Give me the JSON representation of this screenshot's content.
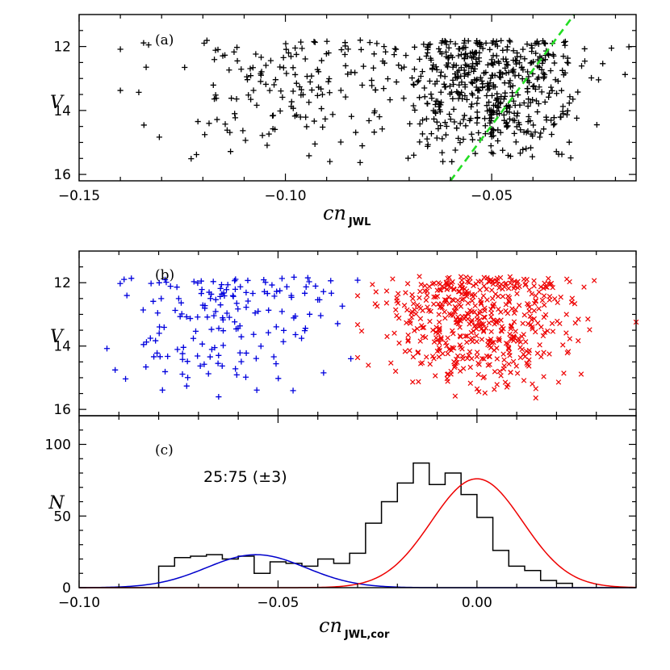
{
  "chart_data": [
    {
      "panel": "(a)",
      "type": "scatter",
      "xlabel_main": "cn",
      "xlabel_sub": "JWL",
      "ylabel": "V",
      "xlim": [
        -0.15,
        -0.015
      ],
      "ylim": [
        16.2,
        11.0
      ],
      "y_inverted": true,
      "xticks": [
        -0.15,
        -0.1,
        -0.05
      ],
      "xtick_labels": [
        "−0.15",
        "−0.10",
        "−0.05"
      ],
      "yticks": [
        12,
        14,
        16
      ],
      "ytick_labels": [
        "12",
        "14",
        "16"
      ],
      "marker": "+",
      "point_color": "#000000",
      "divider_line": {
        "style": "dashed",
        "color": "#22dd22",
        "x": [
          -0.06,
          -0.03
        ],
        "y": [
          16.2,
          11.0
        ]
      },
      "n_points": 700,
      "groups": [
        {
          "x_mean": -0.098,
          "x_sd": 0.015,
          "v_min": 11.8,
          "v_max": 15.7,
          "count": 170
        },
        {
          "x_mean": -0.05,
          "x_sd": 0.011,
          "v_min": 11.8,
          "v_max": 15.7,
          "count": 530
        }
      ]
    },
    {
      "panel": "(b)",
      "type": "scatter",
      "ylabel": "V",
      "xlim": [
        -0.1,
        0.04
      ],
      "ylim": [
        16.2,
        11.0
      ],
      "y_inverted": true,
      "yticks": [
        12,
        14,
        16
      ],
      "ytick_labels": [
        "12",
        "14",
        "16"
      ],
      "series": [
        {
          "name": "",
          "marker": "+",
          "color": "#0000dd",
          "x_range": [
            -0.093,
            -0.03
          ],
          "count": 170
        },
        {
          "name": "",
          "marker": "x",
          "color": "#ee0000",
          "x_range": [
            -0.03,
            0.04
          ],
          "count": 530
        }
      ]
    },
    {
      "panel": "(c)",
      "type": "histogram",
      "xlabel_main": "cn",
      "xlabel_sub": "JWL,cor",
      "ylabel": "N",
      "xlim": [
        -0.1,
        0.04
      ],
      "ylim": [
        0,
        120
      ],
      "xticks": [
        -0.1,
        -0.05,
        0.0
      ],
      "xtick_labels": [
        "−0.10",
        "−0.05",
        "0.00"
      ],
      "yticks": [
        0,
        50,
        100
      ],
      "ytick_labels": [
        "0",
        "50",
        "100"
      ],
      "bin_width": 0.004,
      "bin_start": -0.08,
      "counts": [
        15,
        21,
        22,
        23,
        20,
        22,
        10,
        18,
        17,
        15,
        20,
        17,
        24,
        45,
        60,
        73,
        87,
        72,
        80,
        65,
        49,
        26,
        15,
        12,
        5,
        3
      ],
      "hist_color": "#000000",
      "fits": [
        {
          "name": "",
          "color": "#0000cc",
          "mu": -0.0555,
          "sigma": 0.0125,
          "amp": 23
        },
        {
          "name": "",
          "color": "#ee0000",
          "mu": 0.0,
          "sigma": 0.0115,
          "amp": 76
        }
      ],
      "annotation": "25:75 (±3)"
    }
  ]
}
